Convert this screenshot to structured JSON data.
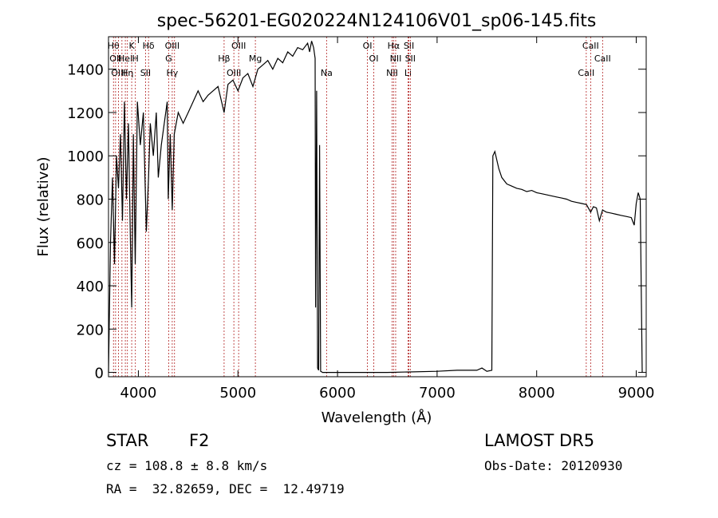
{
  "chart_data": {
    "type": "line",
    "title": "spec-56201-EG020224N124106V01_sp06-145.fits",
    "xlabel": "Wavelength (Å)",
    "ylabel": "Flux (relative)",
    "xlim": [
      3700,
      9100
    ],
    "ylim": [
      -20,
      1550
    ],
    "x_ticks": [
      "4000",
      "5000",
      "6000",
      "7000",
      "8000",
      "9000"
    ],
    "y_ticks": [
      "0",
      "200",
      "400",
      "600",
      "800",
      "1000",
      "1200",
      "1400"
    ],
    "x_tick_values": [
      4000,
      5000,
      6000,
      7000,
      8000,
      9000
    ],
    "y_tick_values": [
      0,
      200,
      400,
      600,
      800,
      1000,
      1200,
      1400
    ],
    "grid": false,
    "series": [
      {
        "x": [
          3700,
          3720,
          3740,
          3760,
          3780,
          3800,
          3820,
          3840,
          3860,
          3880,
          3900,
          3920,
          3933,
          3950,
          3968,
          3990,
          4020,
          4050,
          4080,
          4102,
          4120,
          4150,
          4180,
          4200,
          4230,
          4260,
          4290,
          4300,
          4320,
          4340,
          4360,
          4400,
          4450,
          4500,
          4550,
          4600,
          4650,
          4700,
          4750,
          4800,
          4861,
          4900,
          4950,
          5000,
          5050,
          5100,
          5150,
          5200,
          5250,
          5300,
          5350,
          5400,
          5450,
          5500,
          5550,
          5600,
          5650,
          5700,
          5720,
          5740,
          5760,
          5775,
          5780,
          5790,
          5800,
          5810,
          5820,
          5830,
          5850,
          6000,
          6500,
          7000,
          7200,
          7400,
          7450,
          7500,
          7550,
          7560,
          7580,
          7600,
          7620,
          7650,
          7700,
          7750,
          7800,
          7850,
          7900,
          7950,
          8000,
          8050,
          8100,
          8150,
          8200,
          8250,
          8300,
          8350,
          8400,
          8450,
          8500,
          8542,
          8570,
          8600,
          8630,
          8662,
          8700,
          8750,
          8800,
          8850,
          8900,
          8950,
          8980,
          9000,
          9020,
          9040,
          9060
        ],
        "y": [
          0,
          600,
          900,
          500,
          1000,
          850,
          1100,
          700,
          1250,
          800,
          1150,
          600,
          300,
          1100,
          500,
          1250,
          1050,
          1200,
          650,
          900,
          1150,
          1000,
          1200,
          900,
          1050,
          1150,
          1250,
          800,
          1100,
          750,
          1100,
          1200,
          1150,
          1200,
          1250,
          1300,
          1250,
          1280,
          1300,
          1320,
          1200,
          1330,
          1350,
          1300,
          1360,
          1380,
          1320,
          1400,
          1420,
          1440,
          1400,
          1450,
          1430,
          1480,
          1460,
          1500,
          1490,
          1520,
          1480,
          1530,
          1500,
          1450,
          300,
          1300,
          20,
          10,
          1050,
          5,
          0,
          0,
          0,
          5,
          10,
          10,
          20,
          5,
          10,
          1000,
          1020,
          980,
          940,
          900,
          870,
          860,
          850,
          845,
          835,
          840,
          830,
          825,
          820,
          815,
          810,
          805,
          800,
          790,
          785,
          780,
          775,
          740,
          765,
          760,
          700,
          750,
          740,
          735,
          730,
          725,
          720,
          715,
          680,
          780,
          830,
          800,
          0
        ]
      }
    ],
    "lines": [
      {
        "x": 3750,
        "labels": [
          "Hθ"
        ]
      },
      {
        "x": 3771,
        "labels": [
          "OII"
        ]
      },
      {
        "x": 3800,
        "labels": [
          "OIII"
        ]
      },
      {
        "x": 3835
      },
      {
        "x": 3869,
        "labels": [
          "HeI"
        ]
      },
      {
        "x": 3890,
        "labels": [
          "Hη"
        ]
      },
      {
        "x": 3933,
        "labels": [
          "K"
        ]
      },
      {
        "x": 3970,
        "labels": [
          "H"
        ]
      },
      {
        "x": 4072,
        "labels": [
          "SII"
        ]
      },
      {
        "x": 4102,
        "labels": [
          "Hδ"
        ]
      },
      {
        "x": 4304,
        "labels": [
          "G"
        ]
      },
      {
        "x": 4340,
        "labels": [
          "Hγ",
          "OIII"
        ]
      },
      {
        "x": 4363
      },
      {
        "x": 4861,
        "labels": [
          "Hβ"
        ]
      },
      {
        "x": 4959,
        "labels": [
          "OIII"
        ]
      },
      {
        "x": 5007,
        "labels": [
          "OIII"
        ]
      },
      {
        "x": 5175,
        "labels": [
          "Mg"
        ]
      },
      {
        "x": 5890,
        "labels": [
          "Na"
        ]
      },
      {
        "x": 6300,
        "labels": [
          "OI"
        ]
      },
      {
        "x": 6364,
        "labels": [
          "OI"
        ]
      },
      {
        "x": 6548,
        "labels": [
          "NII"
        ]
      },
      {
        "x": 6563,
        "labels": [
          "Hα"
        ]
      },
      {
        "x": 6584,
        "labels": [
          "NII"
        ]
      },
      {
        "x": 6708,
        "labels": [
          "Li"
        ]
      },
      {
        "x": 6717,
        "labels": [
          "SII"
        ]
      },
      {
        "x": 6731,
        "labels": [
          "SII"
        ]
      },
      {
        "x": 8498,
        "labels": [
          "CaII"
        ]
      },
      {
        "x": 8542,
        "labels": [
          "CaII"
        ]
      },
      {
        "x": 8662,
        "labels": [
          "CaII"
        ]
      }
    ]
  },
  "footer": {
    "class_label": "STAR",
    "subclass": "F2",
    "cz": "cz = 108.8 ± 8.8 km/s",
    "coords": "RA =  32.82659, DEC =  12.49719",
    "survey": "LAMOST DR5",
    "obs_date": "Obs-Date: 20120930"
  },
  "colors": {
    "line_marker": "#b22222",
    "spectrum": "#000000"
  }
}
